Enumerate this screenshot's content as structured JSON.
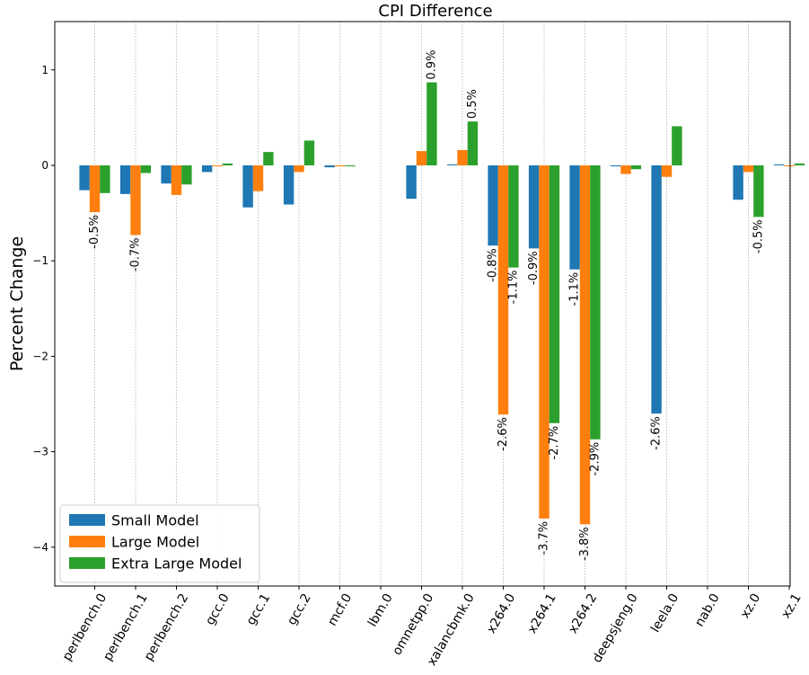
{
  "chart_data": {
    "type": "bar",
    "title": "CPI Difference",
    "xlabel": "",
    "ylabel": "Percent Change",
    "ylim": [
      -4.4,
      1.5
    ],
    "yticks": [
      1,
      0,
      -1,
      -2,
      -3,
      -4
    ],
    "ytick_labels": [
      "1",
      "0",
      "−1",
      "−2",
      "−3",
      "−4"
    ],
    "grid": "vertical dotted",
    "legend_position": "lower-left",
    "categories": [
      "perlbench.0",
      "perlbench.1",
      "perlbench.2",
      "gcc.0",
      "gcc.1",
      "gcc.2",
      "mcf.0",
      "lbm.0",
      "omnetpp.0",
      "xalancbmk.0",
      "x264.0",
      "x264.1",
      "x264.2",
      "deepsjeng.0",
      "leela.0",
      "nab.0",
      "xz.0",
      "xz.1"
    ],
    "series": [
      {
        "name": "Small Model",
        "color": "#1f77b4",
        "values": [
          -0.26,
          -0.3,
          -0.19,
          -0.07,
          -0.44,
          -0.41,
          -0.02,
          0.0,
          -0.35,
          0.01,
          -0.84,
          -0.87,
          -1.09,
          -0.01,
          -2.6,
          0.0,
          -0.36,
          0.01
        ],
        "labels": [
          "",
          "",
          "",
          "",
          "",
          "",
          "",
          "",
          "",
          "",
          "-0.8%",
          "-0.9%",
          "-1.1%",
          "",
          "-2.6%",
          "",
          "",
          ""
        ]
      },
      {
        "name": "Large Model",
        "color": "#ff7f0e",
        "values": [
          -0.49,
          -0.73,
          -0.31,
          -0.01,
          -0.27,
          -0.07,
          -0.01,
          0.0,
          0.15,
          0.16,
          -2.61,
          -3.7,
          -3.76,
          -0.09,
          -0.12,
          0.0,
          -0.07,
          -0.01
        ],
        "labels": [
          "-0.5%",
          "-0.7%",
          "",
          "",
          "",
          "",
          "",
          "",
          "",
          "",
          "-2.6%",
          "-3.7%",
          "-3.8%",
          "",
          "",
          "",
          "",
          ""
        ]
      },
      {
        "name": "Extra Large Model",
        "color": "#2ca02c",
        "values": [
          -0.29,
          -0.08,
          -0.2,
          0.02,
          0.14,
          0.26,
          -0.01,
          0.0,
          0.87,
          0.46,
          -1.07,
          -2.7,
          -2.87,
          -0.04,
          0.41,
          0.0,
          -0.54,
          0.02
        ],
        "labels": [
          "",
          "",
          "",
          "",
          "",
          "",
          "",
          "",
          "0.9%",
          "0.5%",
          "-1.1%",
          "-2.7%",
          "-2.9%",
          "",
          "",
          "",
          "-0.5%",
          ""
        ]
      }
    ]
  }
}
